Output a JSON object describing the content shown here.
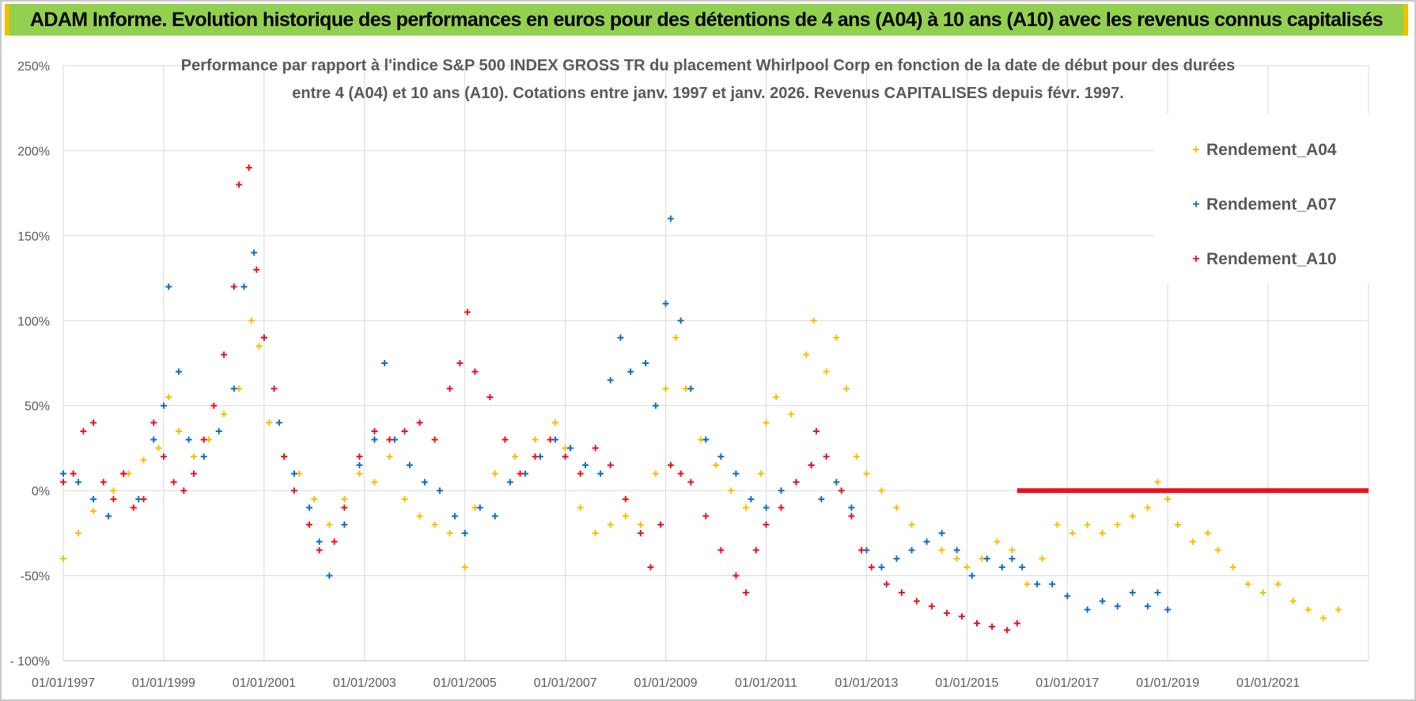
{
  "banner": {
    "title": "ADAM Informe. Evolution historique des performances en euros pour des détentions de 4 ans (A04) à 10 ans (A10) avec les revenus connus capitalisés"
  },
  "colors": {
    "banner_bg": "#92d050",
    "banner_edge": "#f0c000",
    "A04": "#f5c000",
    "A07": "#0e6fbe",
    "A10": "#e8121e",
    "grid": "#d9d9d9",
    "text": "#595959"
  },
  "chart_data": {
    "type": "scatter",
    "title_lines": [
      "Performance par rapport à l'indice S&P 500 INDEX GROSS TR  du placement Whirlpool Corp en fonction de la date de début pour des durées",
      "entre 4 (A04) et 10 ans (A10).  Cotations entre janv. 1997 et janv. 2026. Revenus CAPITALISES depuis févr. 1997."
    ],
    "xlabel": "",
    "ylabel": "",
    "xlim": [
      1997.0,
      2023.0
    ],
    "ylim": [
      -100,
      250
    ],
    "y_ticks": [
      -100,
      -50,
      0,
      50,
      100,
      150,
      200,
      250
    ],
    "y_tick_labels": [
      "- 100%",
      "-50%",
      "0%",
      "50%",
      "100%",
      "150%",
      "200%",
      "250%"
    ],
    "x_ticks": [
      1997,
      1999,
      2001,
      2003,
      2005,
      2007,
      2009,
      2011,
      2013,
      2015,
      2017,
      2019,
      2021
    ],
    "x_tick_labels": [
      "01/01/1997",
      "01/01/1999",
      "01/01/2001",
      "01/01/2003",
      "01/01/2005",
      "01/01/2007",
      "01/01/2009",
      "01/01/2011",
      "01/01/2013",
      "01/01/2015",
      "01/01/2017",
      "01/01/2019",
      "01/01/2021"
    ],
    "legend_position": "top-right",
    "marker": "+",
    "series": [
      {
        "name": "Rendement_A04",
        "key": "A04",
        "points": [
          [
            1997.0,
            -40
          ],
          [
            1997.3,
            -25
          ],
          [
            1997.6,
            -12
          ],
          [
            1998.0,
            0
          ],
          [
            1998.3,
            10
          ],
          [
            1998.6,
            18
          ],
          [
            1998.9,
            25
          ],
          [
            1999.1,
            55
          ],
          [
            1999.3,
            35
          ],
          [
            1999.6,
            20
          ],
          [
            1999.9,
            30
          ],
          [
            2000.2,
            45
          ],
          [
            2000.5,
            60
          ],
          [
            2000.75,
            100
          ],
          [
            2000.9,
            85
          ],
          [
            2001.1,
            40
          ],
          [
            2001.4,
            20
          ],
          [
            2001.7,
            10
          ],
          [
            2002.0,
            -5
          ],
          [
            2002.3,
            -20
          ],
          [
            2002.6,
            -5
          ],
          [
            2002.9,
            10
          ],
          [
            2003.2,
            5
          ],
          [
            2003.5,
            20
          ],
          [
            2003.8,
            -5
          ],
          [
            2004.1,
            -15
          ],
          [
            2004.4,
            -20
          ],
          [
            2004.7,
            -25
          ],
          [
            2005.0,
            -45
          ],
          [
            2005.2,
            -10
          ],
          [
            2005.6,
            10
          ],
          [
            2006.0,
            20
          ],
          [
            2006.4,
            30
          ],
          [
            2006.8,
            40
          ],
          [
            2007.0,
            25
          ],
          [
            2007.3,
            -10
          ],
          [
            2007.6,
            -25
          ],
          [
            2007.9,
            -20
          ],
          [
            2008.2,
            -15
          ],
          [
            2008.5,
            -20
          ],
          [
            2008.8,
            10
          ],
          [
            2009.0,
            60
          ],
          [
            2009.2,
            90
          ],
          [
            2009.4,
            60
          ],
          [
            2009.7,
            30
          ],
          [
            2010.0,
            15
          ],
          [
            2010.3,
            0
          ],
          [
            2010.6,
            -10
          ],
          [
            2010.9,
            10
          ],
          [
            2011.0,
            40
          ],
          [
            2011.2,
            55
          ],
          [
            2011.5,
            45
          ],
          [
            2011.8,
            80
          ],
          [
            2011.95,
            100
          ],
          [
            2012.2,
            70
          ],
          [
            2012.4,
            90
          ],
          [
            2012.6,
            60
          ],
          [
            2012.8,
            20
          ],
          [
            2013.0,
            10
          ],
          [
            2013.3,
            0
          ],
          [
            2013.6,
            -10
          ],
          [
            2013.9,
            -20
          ],
          [
            2014.2,
            -30
          ],
          [
            2014.5,
            -35
          ],
          [
            2014.8,
            -40
          ],
          [
            2015.0,
            -45
          ],
          [
            2015.3,
            -40
          ],
          [
            2015.6,
            -30
          ],
          [
            2015.9,
            -35
          ],
          [
            2016.2,
            -55
          ],
          [
            2016.5,
            -40
          ],
          [
            2016.8,
            -20
          ],
          [
            2017.1,
            -25
          ],
          [
            2017.4,
            -20
          ],
          [
            2017.7,
            -25
          ],
          [
            2018.0,
            -20
          ],
          [
            2018.3,
            -15
          ],
          [
            2018.6,
            -10
          ],
          [
            2018.8,
            5
          ],
          [
            2019.0,
            -5
          ],
          [
            2019.2,
            -20
          ],
          [
            2019.5,
            -30
          ],
          [
            2019.8,
            -25
          ],
          [
            2020.0,
            -35
          ],
          [
            2020.3,
            -45
          ],
          [
            2020.6,
            -55
          ],
          [
            2020.9,
            -60
          ],
          [
            2021.2,
            -55
          ],
          [
            2021.5,
            -65
          ],
          [
            2021.8,
            -70
          ],
          [
            2022.1,
            -75
          ],
          [
            2022.4,
            -70
          ]
        ]
      },
      {
        "name": "Rendement_A07",
        "key": "A07",
        "points": [
          [
            1997.0,
            10
          ],
          [
            1997.3,
            5
          ],
          [
            1997.6,
            -5
          ],
          [
            1997.9,
            -15
          ],
          [
            1998.2,
            10
          ],
          [
            1998.5,
            -5
          ],
          [
            1998.8,
            30
          ],
          [
            1999.0,
            50
          ],
          [
            1999.1,
            120
          ],
          [
            1999.3,
            70
          ],
          [
            1999.5,
            30
          ],
          [
            1999.8,
            20
          ],
          [
            2000.1,
            35
          ],
          [
            2000.4,
            60
          ],
          [
            2000.6,
            120
          ],
          [
            2000.8,
            140
          ],
          [
            2001.0,
            90
          ],
          [
            2001.3,
            40
          ],
          [
            2001.6,
            10
          ],
          [
            2001.9,
            -10
          ],
          [
            2002.1,
            -30
          ],
          [
            2002.3,
            -50
          ],
          [
            2002.6,
            -20
          ],
          [
            2002.9,
            15
          ],
          [
            2003.2,
            30
          ],
          [
            2003.4,
            75
          ],
          [
            2003.6,
            30
          ],
          [
            2003.9,
            15
          ],
          [
            2004.2,
            5
          ],
          [
            2004.5,
            0
          ],
          [
            2004.8,
            -15
          ],
          [
            2005.0,
            -25
          ],
          [
            2005.3,
            -10
          ],
          [
            2005.6,
            -15
          ],
          [
            2005.9,
            5
          ],
          [
            2006.2,
            10
          ],
          [
            2006.5,
            20
          ],
          [
            2006.8,
            30
          ],
          [
            2007.1,
            25
          ],
          [
            2007.4,
            15
          ],
          [
            2007.7,
            10
          ],
          [
            2007.9,
            65
          ],
          [
            2008.1,
            90
          ],
          [
            2008.3,
            70
          ],
          [
            2008.6,
            75
          ],
          [
            2008.8,
            50
          ],
          [
            2009.0,
            110
          ],
          [
            2009.1,
            160
          ],
          [
            2009.3,
            100
          ],
          [
            2009.5,
            60
          ],
          [
            2009.8,
            30
          ],
          [
            2010.1,
            20
          ],
          [
            2010.4,
            10
          ],
          [
            2010.7,
            -5
          ],
          [
            2011.0,
            -10
          ],
          [
            2011.3,
            0
          ],
          [
            2011.6,
            5
          ],
          [
            2011.9,
            15
          ],
          [
            2012.1,
            -5
          ],
          [
            2012.4,
            5
          ],
          [
            2012.7,
            -10
          ],
          [
            2013.0,
            -35
          ],
          [
            2013.3,
            -45
          ],
          [
            2013.6,
            -40
          ],
          [
            2013.9,
            -35
          ],
          [
            2014.2,
            -30
          ],
          [
            2014.5,
            -25
          ],
          [
            2014.8,
            -35
          ],
          [
            2015.1,
            -50
          ],
          [
            2015.4,
            -40
          ],
          [
            2015.7,
            -45
          ],
          [
            2015.9,
            -40
          ],
          [
            2016.1,
            -45
          ],
          [
            2016.4,
            -55
          ],
          [
            2016.7,
            -55
          ],
          [
            2017.0,
            -62
          ],
          [
            2017.4,
            -70
          ],
          [
            2017.7,
            -65
          ],
          [
            2018.0,
            -68
          ],
          [
            2018.3,
            -60
          ],
          [
            2018.6,
            -68
          ],
          [
            2018.8,
            -60
          ],
          [
            2019.0,
            -70
          ]
        ]
      },
      {
        "name": "Rendement_A10",
        "key": "A10",
        "points": [
          [
            1997.0,
            5
          ],
          [
            1997.2,
            10
          ],
          [
            1997.4,
            35
          ],
          [
            1997.6,
            40
          ],
          [
            1997.8,
            5
          ],
          [
            1998.0,
            -5
          ],
          [
            1998.2,
            10
          ],
          [
            1998.4,
            -10
          ],
          [
            1998.6,
            -5
          ],
          [
            1998.8,
            40
          ],
          [
            1999.0,
            20
          ],
          [
            1999.2,
            5
          ],
          [
            1999.4,
            0
          ],
          [
            1999.6,
            10
          ],
          [
            1999.8,
            30
          ],
          [
            2000.0,
            50
          ],
          [
            2000.2,
            80
          ],
          [
            2000.4,
            120
          ],
          [
            2000.5,
            180
          ],
          [
            2000.7,
            190
          ],
          [
            2000.85,
            130
          ],
          [
            2001.0,
            90
          ],
          [
            2001.2,
            60
          ],
          [
            2001.4,
            20
          ],
          [
            2001.6,
            0
          ],
          [
            2001.9,
            -20
          ],
          [
            2002.1,
            -35
          ],
          [
            2002.4,
            -30
          ],
          [
            2002.6,
            -10
          ],
          [
            2002.9,
            20
          ],
          [
            2003.2,
            35
          ],
          [
            2003.5,
            30
          ],
          [
            2003.8,
            35
          ],
          [
            2004.1,
            40
          ],
          [
            2004.4,
            30
          ],
          [
            2004.7,
            60
          ],
          [
            2004.9,
            75
          ],
          [
            2005.05,
            105
          ],
          [
            2005.2,
            70
          ],
          [
            2005.5,
            55
          ],
          [
            2005.8,
            30
          ],
          [
            2006.1,
            10
          ],
          [
            2006.4,
            20
          ],
          [
            2006.7,
            30
          ],
          [
            2007.0,
            20
          ],
          [
            2007.3,
            10
          ],
          [
            2007.6,
            25
          ],
          [
            2007.9,
            15
          ],
          [
            2008.2,
            -5
          ],
          [
            2008.5,
            -25
          ],
          [
            2008.7,
            -45
          ],
          [
            2008.9,
            -20
          ],
          [
            2009.1,
            15
          ],
          [
            2009.3,
            10
          ],
          [
            2009.5,
            5
          ],
          [
            2009.8,
            -15
          ],
          [
            2010.1,
            -35
          ],
          [
            2010.4,
            -50
          ],
          [
            2010.6,
            -60
          ],
          [
            2010.8,
            -35
          ],
          [
            2011.0,
            -20
          ],
          [
            2011.3,
            -10
          ],
          [
            2011.6,
            5
          ],
          [
            2011.9,
            15
          ],
          [
            2012.0,
            35
          ],
          [
            2012.2,
            20
          ],
          [
            2012.5,
            0
          ],
          [
            2012.7,
            -15
          ],
          [
            2012.9,
            -35
          ],
          [
            2013.1,
            -45
          ],
          [
            2013.4,
            -55
          ],
          [
            2013.7,
            -60
          ],
          [
            2014.0,
            -65
          ],
          [
            2014.3,
            -68
          ],
          [
            2014.6,
            -72
          ],
          [
            2014.9,
            -74
          ],
          [
            2015.2,
            -78
          ],
          [
            2015.5,
            -80
          ],
          [
            2015.8,
            -82
          ],
          [
            2016.0,
            -78
          ]
        ]
      }
    ],
    "flat_line": {
      "series": "Rendement_A10",
      "x_start": 2016.0,
      "x_end": 2023.0,
      "y": 0
    }
  }
}
